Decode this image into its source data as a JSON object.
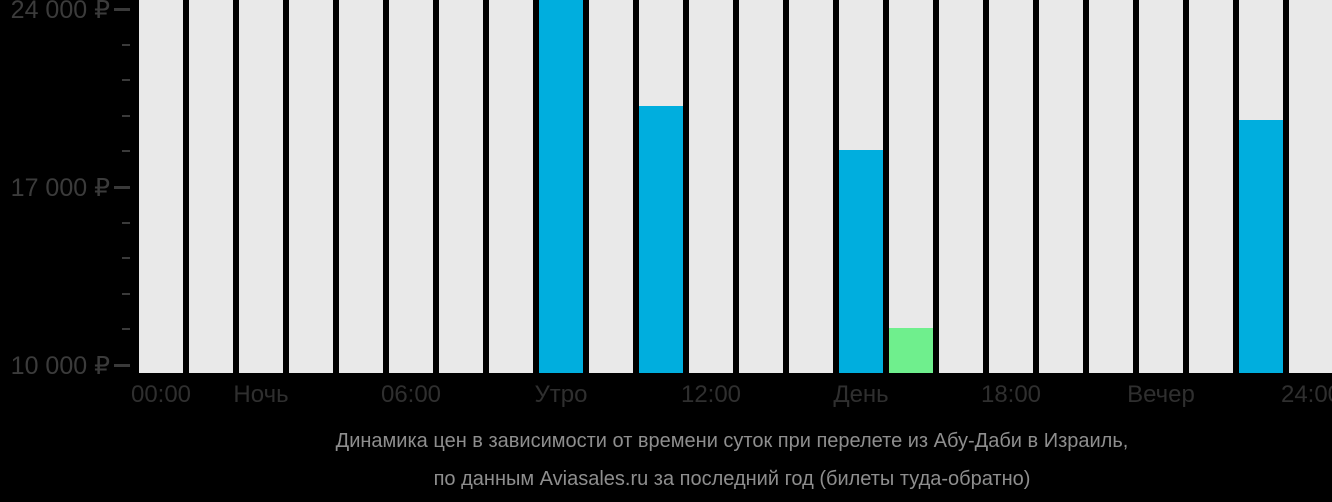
{
  "chart_data": {
    "type": "bar",
    "title": "Динамика цен в зависимости от времени суток при перелете из Абу-Даби в Израиль,",
    "subtitle": "по данным Aviasales.ru за последний год (билеты туда-обратно)",
    "y_axis": {
      "tick_labels": [
        "24 000 ₽",
        "17 000 ₽",
        "10 000 ₽"
      ],
      "tick_values": [
        24000,
        17000,
        10000
      ],
      "minor_tick_step": 1400,
      "axis_max": 24000,
      "axis_min": 10000,
      "grid": false
    },
    "x_axis": {
      "labels": [
        {
          "text": "00:00",
          "bar_index": 1
        },
        {
          "text": "Ночь",
          "bar_index": 3
        },
        {
          "text": "06:00",
          "bar_index": 6
        },
        {
          "text": "Утро",
          "bar_index": 9
        },
        {
          "text": "12:00",
          "bar_index": 12
        },
        {
          "text": "День",
          "bar_index": 15
        },
        {
          "text": "18:00",
          "bar_index": 18
        },
        {
          "text": "Вечер",
          "bar_index": 21
        },
        {
          "text": "24:00",
          "bar_index": 24
        }
      ]
    },
    "bars_total": 24,
    "price_bars": [
      {
        "bar_index": 9,
        "value": 24400,
        "color_key": "blue",
        "clipped_at_top": true
      },
      {
        "bar_index": 11,
        "value": 20200,
        "color_key": "blue",
        "clipped_at_top": false
      },
      {
        "bar_index": 15,
        "value": 18450,
        "color_key": "blue",
        "clipped_at_top": false
      },
      {
        "bar_index": 16,
        "value": 11450,
        "color_key": "green",
        "clipped_at_top": false
      },
      {
        "bar_index": 23,
        "value": 19650,
        "color_key": "blue",
        "clipped_at_top": false
      }
    ],
    "legend": null,
    "colors": {
      "blue": "#00AEDE",
      "green": "#6FEF8D",
      "placeholder": "#E9E9E9",
      "axis_text": "#333333",
      "tick": "#3a3a3a",
      "caption_text": "#8e8e8e",
      "background": "#000000"
    }
  }
}
